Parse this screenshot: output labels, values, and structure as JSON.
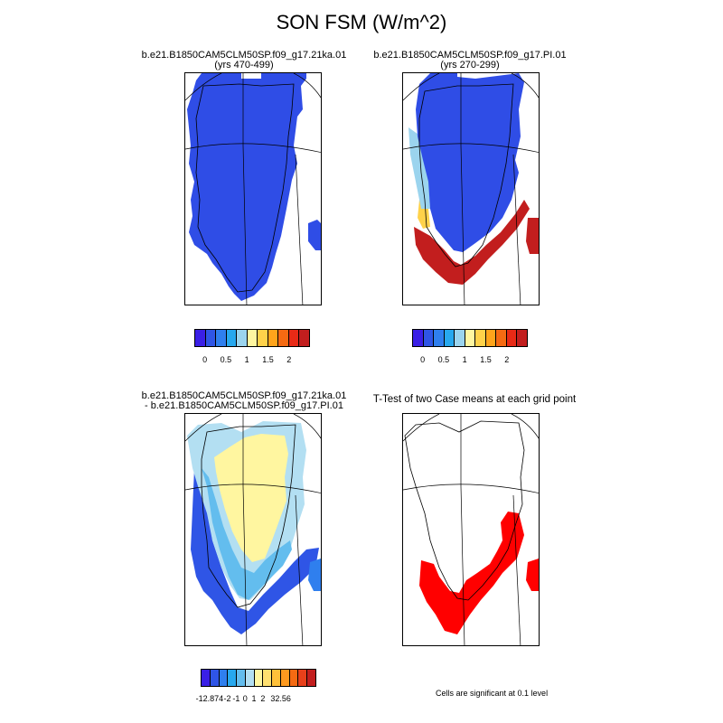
{
  "title": "SON FSM (W/m^2)",
  "panels": {
    "p1": {
      "line1": "b.e21.B1850CAM5CLM50SP.f09_g17.21ka.01",
      "line2": "(yrs 470-499)"
    },
    "p2": {
      "line1": "b.e21.B1850CAM5CLM50SP.f09_g17.PI.01",
      "line2": "(yrs 270-299)"
    },
    "p3": {
      "line1": "b.e21.B1850CAM5CLM50SP.f09_g17.21ka.01",
      "line2": "- b.e21.B1850CAM5CLM50SP.f09_g17.PI.01"
    },
    "p4": {
      "line1": "T-Test of two Case means at each grid point"
    }
  },
  "colorbars": {
    "abs": {
      "colors": [
        "#3a1fe6",
        "#2f55e6",
        "#2f7fee",
        "#27a8ee",
        "#9bd4ee",
        "#fff6a0",
        "#ffd24a",
        "#ffa41b",
        "#f56a12",
        "#e82a16",
        "#c21e1e"
      ],
      "labels": [
        "0",
        "0.5",
        "1",
        "1.5",
        "2"
      ]
    },
    "diff": {
      "colors": [
        "#3a1fe6",
        "#2f55e6",
        "#2f7fee",
        "#27a8ee",
        "#63bdee",
        "#b3dff2",
        "#fff6a0",
        "#ffe070",
        "#ffc13a",
        "#ff9a1f",
        "#f56a12",
        "#e8401a",
        "#c21e1e"
      ],
      "labels": [
        "-12.874",
        "-2",
        "-1",
        "0",
        "1",
        "2",
        "32.56"
      ]
    }
  },
  "significance_note": "Cells are significant at 0.1 level",
  "colors": {
    "ice_abs": "#2f4de6",
    "ice_diff": "#fff6a0",
    "significant": "#ff0000"
  }
}
